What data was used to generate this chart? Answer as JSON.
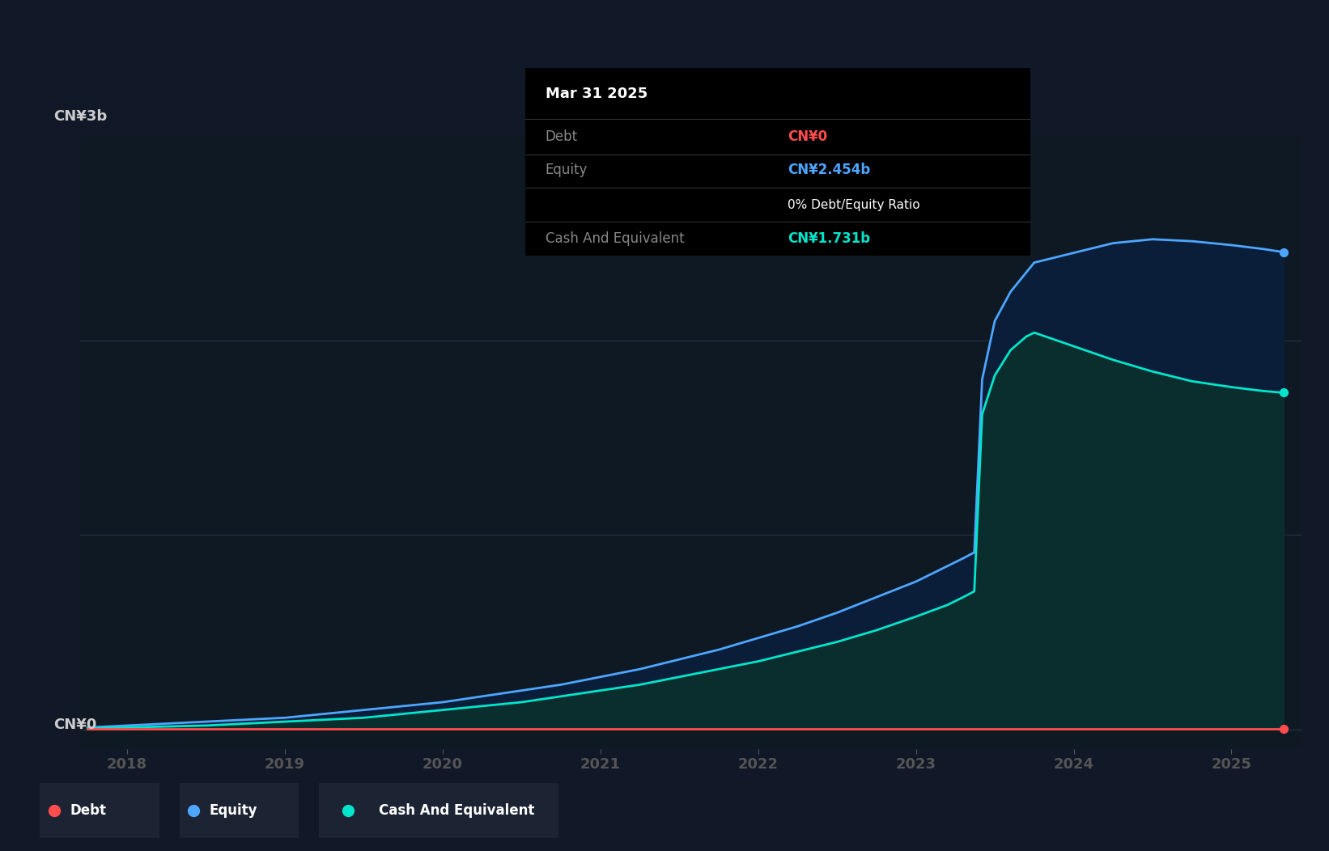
{
  "background_color": "#111827",
  "plot_bg_color": "#0f1923",
  "tooltip": {
    "date": "Mar 31 2025",
    "debt_label": "Debt",
    "debt_value": "CN¥0",
    "debt_color": "#ff4d4d",
    "equity_label": "Equity",
    "equity_value": "CN¥2.454b",
    "equity_color": "#4da6ff",
    "ratio_text": "0% Debt/Equity Ratio",
    "cash_label": "Cash And Equivalent",
    "cash_value": "CN¥1.731b",
    "cash_color": "#00e5cc"
  },
  "ylabel_top": "CN¥3b",
  "ylabel_bottom": "CN¥0",
  "x_ticks": [
    2018,
    2019,
    2020,
    2021,
    2022,
    2023,
    2024,
    2025
  ],
  "x_min": 2017.7,
  "x_max": 2025.45,
  "y_min": -0.1,
  "y_max": 3.05,
  "equity_color": "#4da6ff",
  "cash_color": "#00e5cc",
  "debt_color": "#ff4d4d",
  "equity_fill_color": "#0a1e3a",
  "cash_fill_color": "#0a2e2e",
  "legend_bg": "#1c2333",
  "grid_color": "#2a3a4a",
  "time_points": [
    2017.75,
    2018.0,
    2018.25,
    2018.5,
    2018.75,
    2019.0,
    2019.25,
    2019.5,
    2019.75,
    2020.0,
    2020.25,
    2020.5,
    2020.75,
    2021.0,
    2021.25,
    2021.5,
    2021.75,
    2022.0,
    2022.25,
    2022.5,
    2022.75,
    2023.0,
    2023.1,
    2023.2,
    2023.3,
    2023.37,
    2023.42,
    2023.5,
    2023.6,
    2023.7,
    2023.75,
    2024.0,
    2024.25,
    2024.5,
    2024.75,
    2025.0,
    2025.2,
    2025.33
  ],
  "equity_values": [
    0.01,
    0.02,
    0.03,
    0.04,
    0.05,
    0.06,
    0.08,
    0.1,
    0.12,
    0.14,
    0.17,
    0.2,
    0.23,
    0.27,
    0.31,
    0.36,
    0.41,
    0.47,
    0.53,
    0.6,
    0.68,
    0.76,
    0.8,
    0.84,
    0.88,
    0.91,
    1.8,
    2.1,
    2.25,
    2.35,
    2.4,
    2.45,
    2.5,
    2.52,
    2.51,
    2.49,
    2.47,
    2.454
  ],
  "cash_values": [
    0.005,
    0.01,
    0.015,
    0.02,
    0.03,
    0.04,
    0.05,
    0.06,
    0.08,
    0.1,
    0.12,
    0.14,
    0.17,
    0.2,
    0.23,
    0.27,
    0.31,
    0.35,
    0.4,
    0.45,
    0.51,
    0.58,
    0.61,
    0.64,
    0.68,
    0.71,
    1.62,
    1.82,
    1.95,
    2.02,
    2.04,
    1.97,
    1.9,
    1.84,
    1.79,
    1.76,
    1.74,
    1.731
  ],
  "debt_values": [
    0.0,
    0.0,
    0.0,
    0.0,
    0.0,
    0.0,
    0.0,
    0.0,
    0.0,
    0.0,
    0.0,
    0.0,
    0.0,
    0.0,
    0.0,
    0.0,
    0.0,
    0.0,
    0.0,
    0.0,
    0.0,
    0.0,
    0.0,
    0.0,
    0.0,
    0.0,
    0.0,
    0.0,
    0.0,
    0.0,
    0.0,
    0.0,
    0.0,
    0.0,
    0.0,
    0.0,
    0.0,
    0.0
  ]
}
